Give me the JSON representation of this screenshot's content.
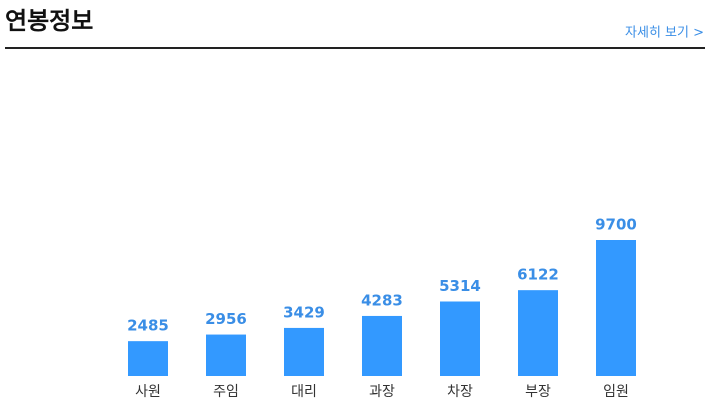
{
  "header": {
    "title": "연봉정보",
    "link": "자세히 보기 >"
  },
  "chart_data": {
    "type": "bar",
    "categories": [
      "사원",
      "주임",
      "대리",
      "과장",
      "차장",
      "부장",
      "임원"
    ],
    "values": [
      2485,
      2956,
      3429,
      4283,
      5314,
      6122,
      9700
    ],
    "color": "#3399ff"
  }
}
